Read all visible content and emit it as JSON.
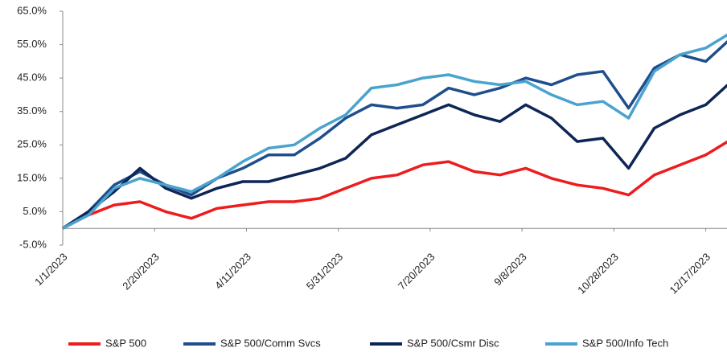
{
  "chart_data": {
    "type": "line",
    "x": [
      "1/1/2023",
      "1/15/2023",
      "1/29/2023",
      "2/12/2023",
      "2/26/2023",
      "3/12/2023",
      "3/26/2023",
      "4/9/2023",
      "4/23/2023",
      "5/7/2023",
      "5/21/2023",
      "6/4/2023",
      "6/18/2023",
      "7/2/2023",
      "7/16/2023",
      "7/30/2023",
      "8/13/2023",
      "8/27/2023",
      "9/10/2023",
      "9/24/2023",
      "10/8/2023",
      "10/22/2023",
      "11/5/2023",
      "11/19/2023",
      "12/3/2023",
      "12/17/2023",
      "12/29/2023"
    ],
    "series": [
      {
        "name": "S&P 500",
        "color": "#ee1c1c",
        "values": [
          0,
          4,
          7,
          8,
          5,
          3,
          6,
          7,
          8,
          8,
          9,
          12,
          15,
          16,
          19,
          20,
          17,
          16,
          18,
          15,
          13,
          12,
          10,
          16,
          19,
          22,
          26
        ]
      },
      {
        "name": "S&P 500/Comm Svcs",
        "color": "#1f4e8c",
        "values": [
          0,
          5,
          13,
          17,
          13,
          10,
          15,
          18,
          22,
          22,
          27,
          33,
          37,
          36,
          37,
          42,
          40,
          42,
          45,
          43,
          46,
          47,
          36,
          48,
          52,
          50,
          56
        ]
      },
      {
        "name": "S&P 500/Csmr Disc",
        "color": "#0d2656",
        "values": [
          0,
          5,
          11,
          18,
          12,
          9,
          12,
          14,
          14,
          16,
          18,
          21,
          28,
          31,
          34,
          37,
          34,
          32,
          37,
          33,
          26,
          27,
          18,
          30,
          34,
          37,
          43
        ]
      },
      {
        "name": "S&P 500/Info Tech",
        "color": "#4aa3cf",
        "values": [
          0,
          4,
          12,
          15,
          13,
          11,
          15,
          20,
          24,
          25,
          30,
          34,
          42,
          43,
          45,
          46,
          44,
          43,
          44,
          40,
          37,
          38,
          33,
          47,
          52,
          54,
          58
        ]
      }
    ],
    "xlim": [
      "1/1/2023",
      "12/29/2023"
    ],
    "xticks": [
      "1/1/2023",
      "2/20/2023",
      "4/11/2023",
      "5/31/2023",
      "7/20/2023",
      "9/8/2023",
      "10/28/2023",
      "12/17/2023"
    ],
    "ylim": [
      -5,
      65
    ],
    "yticks": [
      {
        "value": -5,
        "label": "-5.0%"
      },
      {
        "value": 5,
        "label": "5.0%"
      },
      {
        "value": 15,
        "label": "15.0%"
      },
      {
        "value": 25,
        "label": "25.0%"
      },
      {
        "value": 35,
        "label": "35.0%"
      },
      {
        "value": 45,
        "label": "45.0%"
      },
      {
        "value": 55,
        "label": "55.0%"
      },
      {
        "value": 65,
        "label": "65.0%"
      }
    ],
    "grid": false,
    "legend": "bottom"
  }
}
